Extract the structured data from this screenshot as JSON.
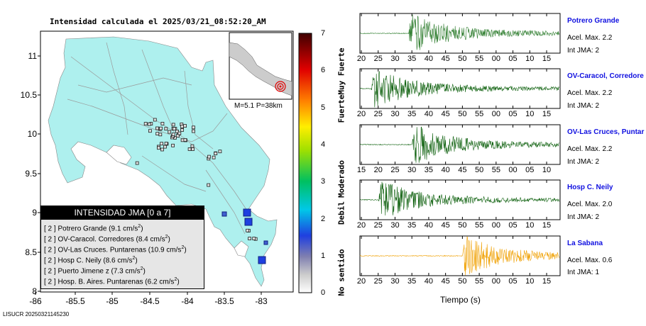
{
  "title": "Intensidad calculada el 2025/03/21_08:52:20_AM",
  "footer": "LISUCR 20250321145230",
  "map": {
    "lon_ticks": [
      "-86",
      "-85.5",
      "-85",
      "-84.5",
      "-84",
      "-83.5",
      "-83"
    ],
    "lat_ticks": [
      "11",
      "10.5",
      "10",
      "9.5",
      "9",
      "8.5",
      "8"
    ],
    "inset_label": "M=5.1 P=38km",
    "colors": {
      "land": "#aef0ee",
      "sea": "#ffffff",
      "roads": "#999999",
      "epicenter": "#e00000"
    }
  },
  "intensity_box": {
    "header": "INTENSIDAD JMA [0 a 7]",
    "stations": [
      {
        "level": "[ 2 ]",
        "name": "Potrero Grande (9.1 cm/s",
        "sup": "2",
        "close": ")"
      },
      {
        "level": "[ 2 ]",
        "name": "OV-Caracol. Corredores (8.4 cm/s",
        "sup": "2",
        "close": ")"
      },
      {
        "level": "[ 2 ]",
        "name": "OV-Las Cruces. Puntarenas (10.9 cm/s",
        "sup": "2",
        "close": ")"
      },
      {
        "level": "[ 2 ]",
        "name": "Hosp C. Neily (8.6 cm/s",
        "sup": "2",
        "close": ")"
      },
      {
        "level": "[ 2 ]",
        "name": "Puerto Jimene z (7.3 cm/s",
        "sup": "2",
        "close": ")"
      },
      {
        "level": "[ 2 ]",
        "name": "Hosp. B. Aires. Puntarenas (6.2 cm/s",
        "sup": "2",
        "close": ")"
      }
    ]
  },
  "colorbar": {
    "ticks": [
      "7",
      "6",
      "5",
      "4",
      "3",
      "2",
      "1",
      "0"
    ],
    "labels": [
      "Muy Fuerte",
      "Fuerte",
      "Moderado",
      "Debil",
      "No sentido"
    ]
  },
  "chart_data": {
    "type": "line",
    "xlabel": "Tiempo (s)",
    "traces": [
      {
        "name": "Potrero Grande",
        "accel": "Acel. Max. 2.2",
        "jma": "Int JMA: 2",
        "color": "#2e7d2e",
        "tick_labels": [
          "20",
          "25",
          "30",
          "35",
          "40",
          "45",
          "50",
          "55",
          "00",
          "05",
          "10",
          "15"
        ],
        "onset": 34
      },
      {
        "name": "OV-Caracol, Corredore",
        "accel": "Acel. Max. 2.2",
        "jma": "Int JMA: 2",
        "color": "#0a5e0a",
        "tick_labels": [
          "20",
          "25",
          "30",
          "35",
          "40",
          "45",
          "50",
          "55",
          "00",
          "05",
          "10",
          "15"
        ],
        "onset": 23
      },
      {
        "name": "OV-Las Cruces, Puntar",
        "accel": "Acel. Max. 2.2",
        "jma": "Int JMA: 2",
        "color": "#0a5e0a",
        "tick_labels": [
          "15",
          "20",
          "25",
          "30",
          "35",
          "40",
          "45",
          "50",
          "55",
          "00",
          "05",
          "10"
        ],
        "onset": 30
      },
      {
        "name": "Hosp C. Neily",
        "accel": "Acel. Max. 2.0",
        "jma": "Int JMA: 2",
        "color": "#0a5e0a",
        "tick_labels": [
          "20",
          "25",
          "30",
          "35",
          "40",
          "45",
          "50",
          "55",
          "00",
          "05",
          "10",
          "15"
        ],
        "onset": 25
      },
      {
        "name": "La Sabana",
        "accel": "Acel. Max. 0.6",
        "jma": "Int JMA: 1",
        "color": "#f0a000",
        "tick_labels": [
          "20",
          "25",
          "30",
          "35",
          "40",
          "45",
          "50",
          "55",
          "00",
          "05",
          "10",
          "15"
        ],
        "onset": 50
      }
    ]
  }
}
